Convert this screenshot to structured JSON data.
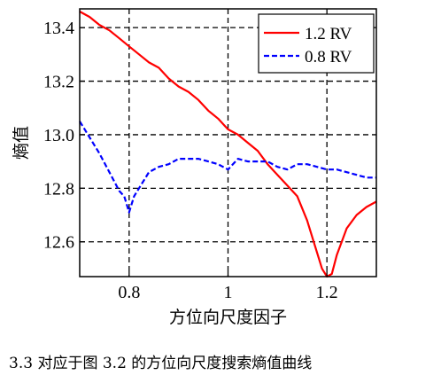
{
  "caption": "3.3  对应于图 3.2 的方位向尺度搜索熵值曲线",
  "chart_data": {
    "type": "line",
    "xlabel": "方位向尺度因子",
    "ylabel": "熵值",
    "xlim": [
      0.7,
      1.3
    ],
    "ylim": [
      12.47,
      13.47
    ],
    "xticks": [
      0.8,
      1.0,
      1.2
    ],
    "xtick_labels": [
      "0.8",
      "1",
      "1.2"
    ],
    "yticks": [
      12.6,
      12.8,
      13.0,
      13.2,
      13.4
    ],
    "ytick_labels": [
      "12.6",
      "12.8",
      "13.0",
      "13.2",
      "13.4"
    ],
    "grid": "dashed",
    "legend_position": "top-right",
    "series": [
      {
        "name": "1.2 RV",
        "color": "#ff0000",
        "style": "solid",
        "x": [
          0.7,
          0.72,
          0.74,
          0.76,
          0.78,
          0.8,
          0.82,
          0.84,
          0.86,
          0.88,
          0.9,
          0.92,
          0.94,
          0.96,
          0.98,
          1.0,
          1.02,
          1.04,
          1.06,
          1.08,
          1.1,
          1.12,
          1.14,
          1.16,
          1.18,
          1.19,
          1.2,
          1.21,
          1.22,
          1.24,
          1.26,
          1.28,
          1.3
        ],
        "values": [
          13.46,
          13.44,
          13.41,
          13.39,
          13.36,
          13.33,
          13.3,
          13.27,
          13.25,
          13.21,
          13.18,
          13.16,
          13.13,
          13.09,
          13.06,
          13.02,
          13.0,
          12.97,
          12.94,
          12.89,
          12.85,
          12.81,
          12.77,
          12.68,
          12.56,
          12.5,
          12.47,
          12.48,
          12.55,
          12.65,
          12.7,
          12.73,
          12.75
        ]
      },
      {
        "name": "0.8 RV",
        "color": "#0000ff",
        "style": "dashed",
        "x": [
          0.7,
          0.72,
          0.74,
          0.76,
          0.78,
          0.79,
          0.8,
          0.81,
          0.82,
          0.84,
          0.86,
          0.88,
          0.9,
          0.92,
          0.94,
          0.96,
          0.98,
          1.0,
          1.02,
          1.04,
          1.06,
          1.08,
          1.1,
          1.12,
          1.14,
          1.16,
          1.18,
          1.2,
          1.22,
          1.24,
          1.26,
          1.28,
          1.3
        ],
        "values": [
          13.05,
          12.99,
          12.93,
          12.86,
          12.79,
          12.77,
          12.71,
          12.77,
          12.8,
          12.86,
          12.88,
          12.89,
          12.91,
          12.91,
          12.91,
          12.9,
          12.89,
          12.87,
          12.91,
          12.9,
          12.9,
          12.9,
          12.88,
          12.87,
          12.89,
          12.89,
          12.88,
          12.87,
          12.87,
          12.86,
          12.85,
          12.84,
          12.84
        ]
      }
    ]
  }
}
